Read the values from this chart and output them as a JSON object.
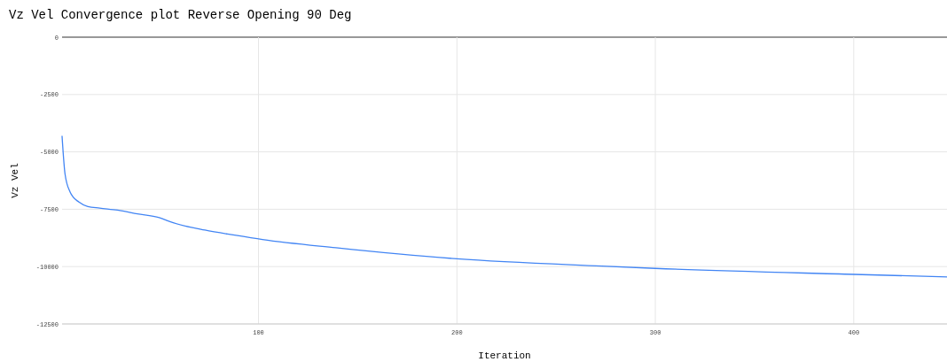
{
  "chart_data": {
    "type": "line",
    "title": "Vz Vel Convergence plot Reverse Opening 90 Deg",
    "xlabel": "Iteration",
    "ylabel": "Vz Vel",
    "x": [
      1,
      2.5,
      5,
      9.5,
      14,
      20,
      29,
      39,
      50,
      57,
      73,
      88,
      102,
      139,
      200,
      273,
      300,
      400,
      447
    ],
    "series": [
      {
        "color": "#4285f4",
        "values": [
          -4320,
          -5970,
          -6740,
          -7190,
          -7380,
          -7450,
          -7540,
          -7700,
          -7870,
          -8090,
          -8410,
          -8630,
          -8820,
          -9180,
          -9660,
          -9980,
          -10080,
          -10340,
          -10450
        ]
      }
    ],
    "xlim": [
      1,
      447
    ],
    "ylim": [
      -12500,
      0
    ],
    "xticks": [
      100,
      200,
      300,
      400
    ],
    "yticks": [
      0,
      -2500,
      -5000,
      -7500,
      -10000,
      -12500
    ],
    "grid": true,
    "marker": "none",
    "line_style": "solid"
  }
}
